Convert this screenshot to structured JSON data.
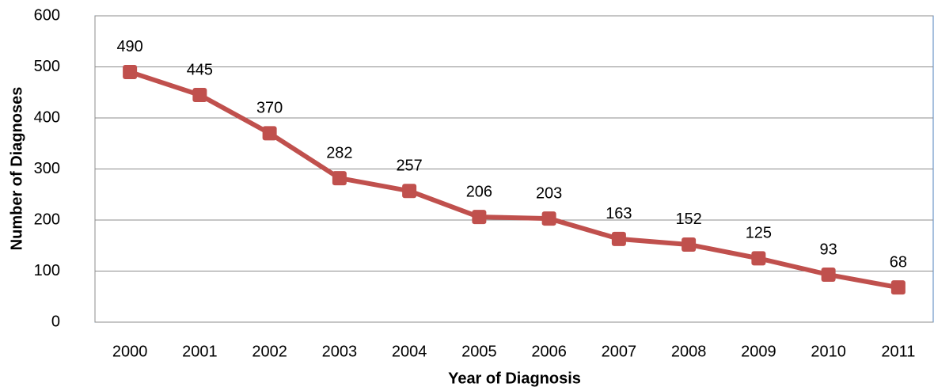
{
  "chart_data": {
    "type": "line",
    "x_label": "Year of Diagnosis",
    "y_label": "Number of Diagnoses",
    "categories": [
      "2000",
      "2001",
      "2002",
      "2003",
      "2004",
      "2005",
      "2006",
      "2007",
      "2008",
      "2009",
      "2010",
      "2011"
    ],
    "values": [
      490,
      445,
      370,
      282,
      257,
      206,
      203,
      163,
      152,
      125,
      93,
      68
    ],
    "color": "#c0504d",
    "ylim": [
      0,
      600
    ],
    "yticks": [
      0,
      100,
      200,
      300,
      400,
      500,
      600
    ],
    "grid": true
  }
}
